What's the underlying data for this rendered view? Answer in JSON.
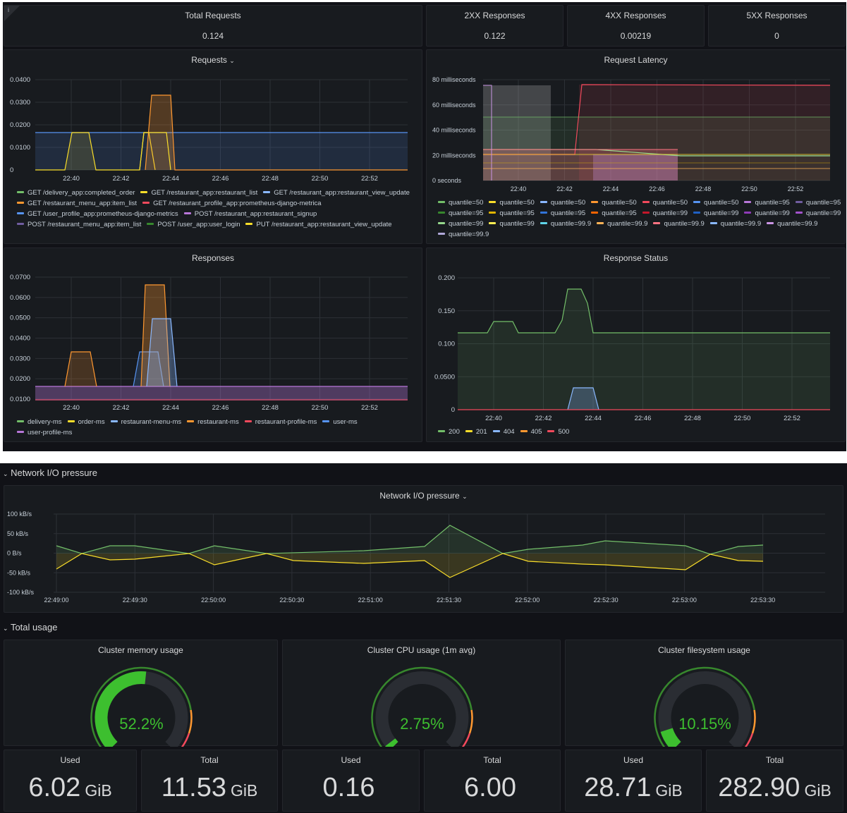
{
  "stats": [
    {
      "title": "Total Requests",
      "value": "0.124"
    },
    {
      "title": "2XX Responses",
      "value": "0.122"
    },
    {
      "title": "4XX Responses",
      "value": "0.00219"
    },
    {
      "title": "5XX Responses",
      "value": "0"
    }
  ],
  "requests": {
    "title": "Requests",
    "yticks": [
      "0.0400",
      "0.0300",
      "0.0200",
      "0.0100",
      "0"
    ],
    "xticks": [
      "22:40",
      "22:42",
      "22:44",
      "22:46",
      "22:48",
      "22:50",
      "22:52"
    ],
    "legend": [
      {
        "label": "GET /delivery_app:completed_order",
        "color": "#73bf69"
      },
      {
        "label": "GET /restaurant_app:restaurant_list",
        "color": "#fade2a"
      },
      {
        "label": "GET /restaurant_app:restaurant_view_update",
        "color": "#8ab8ff"
      },
      {
        "label": "GET /restaurant_menu_app:item_list",
        "color": "#ff9830"
      },
      {
        "label": "GET /restaurant_profile_app:prometheus-django-metrica",
        "color": "#f2495c"
      },
      {
        "label": "GET /user_profile_app:prometheus-django-metrics",
        "color": "#5794f2"
      },
      {
        "label": "POST /restaurant_app:restaurant_signup",
        "color": "#b877d9"
      },
      {
        "label": "POST /restaurant_menu_app:item_list",
        "color": "#705da0"
      },
      {
        "label": "POST /user_app:user_login",
        "color": "#37872d"
      },
      {
        "label": "PUT /restaurant_app:restaurant_view_update",
        "color": "#fade2a"
      }
    ]
  },
  "latency": {
    "title": "Request Latency",
    "yticks": [
      "80 milliseconds",
      "60 milliseconds",
      "40 milliseconds",
      "20 milliseconds",
      "0 seconds"
    ],
    "xticks": [
      "22:40",
      "22:42",
      "22:44",
      "22:46",
      "22:48",
      "22:50",
      "22:52"
    ],
    "legend": [
      {
        "label": "quantile=50",
        "color": "#73bf69"
      },
      {
        "label": "quantile=50",
        "color": "#fade2a"
      },
      {
        "label": "quantile=50",
        "color": "#8ab8ff"
      },
      {
        "label": "quantile=50",
        "color": "#ff9830"
      },
      {
        "label": "quantile=50",
        "color": "#f2495c"
      },
      {
        "label": "quantile=50",
        "color": "#5794f2"
      },
      {
        "label": "quantile=95",
        "color": "#b877d9"
      },
      {
        "label": "quantile=95",
        "color": "#705da0"
      },
      {
        "label": "quantile=95",
        "color": "#37872d"
      },
      {
        "label": "quantile=95",
        "color": "#e0b400"
      },
      {
        "label": "quantile=95",
        "color": "#3274d9"
      },
      {
        "label": "quantile=95",
        "color": "#fa6400"
      },
      {
        "label": "quantile=99",
        "color": "#c4162a"
      },
      {
        "label": "quantile=99",
        "color": "#1f60c4"
      },
      {
        "label": "quantile=99",
        "color": "#8f3bb8"
      },
      {
        "label": "quantile=99",
        "color": "#a352cc"
      },
      {
        "label": "quantile=99",
        "color": "#96d98d"
      },
      {
        "label": "quantile=99",
        "color": "#ffee52"
      },
      {
        "label": "quantile=99.9",
        "color": "#5fd4e8"
      },
      {
        "label": "quantile=99.9",
        "color": "#ffb357"
      },
      {
        "label": "quantile=99.9",
        "color": "#ff7383"
      },
      {
        "label": "quantile=99.9",
        "color": "#8ab8ff"
      },
      {
        "label": "quantile=99.9",
        "color": "#ca95e5"
      },
      {
        "label": "quantile=99.9",
        "color": "#b0a8d9"
      }
    ]
  },
  "responses": {
    "title": "Responses",
    "yticks": [
      "0.0700",
      "0.0600",
      "0.0500",
      "0.0400",
      "0.0300",
      "0.0200",
      "0.0100"
    ],
    "xticks": [
      "22:40",
      "22:42",
      "22:44",
      "22:46",
      "22:48",
      "22:50",
      "22:52"
    ],
    "legend": [
      {
        "label": "delivery-ms",
        "color": "#73bf69"
      },
      {
        "label": "order-ms",
        "color": "#fade2a"
      },
      {
        "label": "restaurant-menu-ms",
        "color": "#8ab8ff"
      },
      {
        "label": "restaurant-ms",
        "color": "#ff9830"
      },
      {
        "label": "restaurant-profile-ms",
        "color": "#f2495c"
      },
      {
        "label": "user-ms",
        "color": "#5794f2"
      },
      {
        "label": "user-profile-ms",
        "color": "#b877d9"
      }
    ]
  },
  "status": {
    "title": "Response Status",
    "yticks": [
      "0.200",
      "0.150",
      "0.100",
      "0.0500",
      "0"
    ],
    "xticks": [
      "22:40",
      "22:42",
      "22:44",
      "22:46",
      "22:48",
      "22:50",
      "22:52"
    ],
    "legend": [
      {
        "label": "200",
        "color": "#73bf69"
      },
      {
        "label": "201",
        "color": "#fade2a"
      },
      {
        "label": "404",
        "color": "#8ab8ff"
      },
      {
        "label": "405",
        "color": "#ff9830"
      },
      {
        "label": "500",
        "color": "#f2495c"
      }
    ]
  },
  "network_row": {
    "title": "Network I/O pressure"
  },
  "network": {
    "title": "Network I/O pressure",
    "yticks": [
      "100 kB/s",
      "50 kB/s",
      "0 B/s",
      "-50 kB/s",
      "-100 kB/s"
    ],
    "xticks": [
      "22:49:00",
      "22:49:30",
      "22:50:00",
      "22:50:30",
      "22:51:00",
      "22:51:30",
      "22:52:00",
      "22:52:30",
      "22:53:00",
      "22:53:30"
    ]
  },
  "usage_row": {
    "title": "Total usage"
  },
  "gauges": [
    {
      "title": "Cluster memory usage",
      "value": "52.2%",
      "percent": 52.2
    },
    {
      "title": "Cluster CPU usage (1m avg)",
      "value": "2.75%",
      "percent": 2.75
    },
    {
      "title": "Cluster filesystem usage",
      "value": "10.15%",
      "percent": 10.15
    }
  ],
  "bigstats": [
    {
      "title": "Used",
      "num": "6.02",
      "unit": "GiB"
    },
    {
      "title": "Total",
      "num": "11.53",
      "unit": "GiB"
    },
    {
      "title": "Used",
      "num": "0.16",
      "unit": ""
    },
    {
      "title": "Total",
      "num": "6.00",
      "unit": ""
    },
    {
      "title": "Used",
      "num": "28.71",
      "unit": "GiB"
    },
    {
      "title": "Total",
      "num": "282.90",
      "unit": "GiB"
    }
  ],
  "chart_data": [
    {
      "type": "area",
      "title": "Requests",
      "x": [
        "22:39",
        "22:40",
        "22:41",
        "22:42",
        "22:43",
        "22:44",
        "22:46",
        "22:48",
        "22:50",
        "22:52",
        "22:53"
      ],
      "ylim": [
        0,
        0.045
      ],
      "series": [
        {
          "values": [
            0.0167,
            0.0167,
            0.0167,
            0.0167,
            0.0167,
            0.0167,
            0.0167,
            0.0167,
            0.0167,
            0.0167,
            0.0167
          ]
        },
        {
          "values": [
            0,
            0.0167,
            0,
            0,
            0.0333,
            0.0167,
            0,
            0,
            0,
            0,
            0
          ]
        }
      ]
    },
    {
      "type": "line",
      "title": "Request Latency",
      "x": [
        "22:39",
        "22:42",
        "22:43",
        "22:46",
        "22:53"
      ],
      "ylim": [
        0,
        85
      ],
      "series": [
        {
          "values": [
            75,
            22,
            75,
            75,
            74
          ]
        },
        {
          "values": [
            50,
            50,
            50,
            50,
            50
          ]
        },
        {
          "values": [
            25,
            25,
            22,
            22,
            20
          ]
        }
      ]
    },
    {
      "type": "area",
      "title": "Responses",
      "x": [
        "22:39",
        "22:40",
        "22:42",
        "22:43",
        "22:44",
        "22:46",
        "22:53"
      ],
      "ylim": [
        0.01,
        0.07
      ],
      "series": [
        {
          "values": [
            0.0167,
            0.0333,
            0.0167,
            0.0667,
            0.0167,
            0.0167,
            0.0167
          ]
        },
        {
          "values": [
            0.0167,
            0.0167,
            0.0167,
            0.05,
            0.0167,
            0.0167,
            0.0167
          ]
        }
      ]
    },
    {
      "type": "area",
      "title": "Response Status",
      "x": [
        "22:39",
        "22:40",
        "22:41",
        "22:42",
        "22:43",
        "22:44",
        "22:52",
        "22:53"
      ],
      "ylim": [
        0,
        0.21
      ],
      "series": [
        {
          "name": "200",
          "values": [
            0.117,
            0.133,
            0.117,
            0.117,
            0.183,
            0.117,
            0.117,
            0.117
          ]
        },
        {
          "name": "404",
          "values": [
            0,
            0,
            0,
            0,
            0.033,
            0,
            0,
            0
          ]
        }
      ]
    },
    {
      "type": "line",
      "title": "Network I/O pressure",
      "x": [
        "22:49:00",
        "22:49:30",
        "22:50:00",
        "22:50:30",
        "22:51:00",
        "22:51:30",
        "22:52:00",
        "22:52:30",
        "22:53:00",
        "22:53:30"
      ],
      "ylim": [
        -100,
        100
      ],
      "series": [
        {
          "values": [
            20,
            20,
            20,
            5,
            10,
            72,
            10,
            33,
            20,
            22
          ]
        },
        {
          "values": [
            -42,
            -15,
            -30,
            -15,
            -22,
            -62,
            -20,
            -28,
            -42,
            -20
          ]
        }
      ]
    }
  ]
}
